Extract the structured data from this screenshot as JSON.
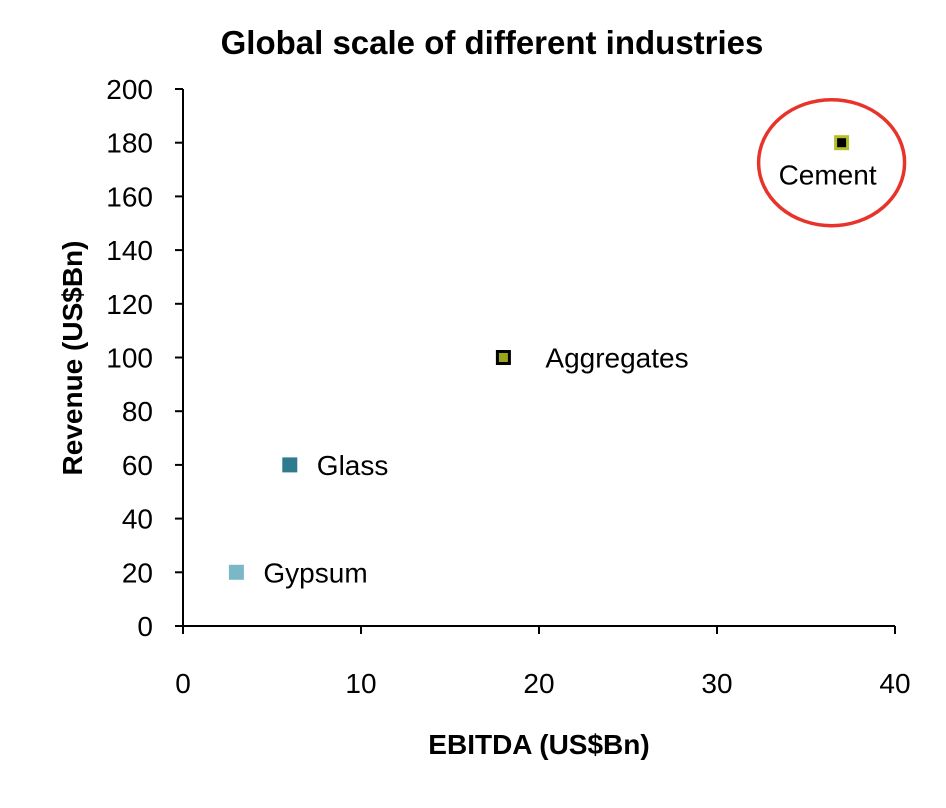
{
  "chart_data": {
    "type": "scatter",
    "title": "Global scale of different industries",
    "xlabel": "EBITDA (US$Bn)",
    "ylabel": "Revenue (US$Bn)",
    "xlim": [
      0,
      40
    ],
    "ylim": [
      0,
      200
    ],
    "xticks": [
      0,
      10,
      20,
      30,
      40
    ],
    "yticks": [
      0,
      20,
      40,
      60,
      80,
      100,
      120,
      140,
      160,
      180,
      200
    ],
    "grid": false,
    "points": [
      {
        "label": "Gypsum",
        "x": 3,
        "y": 20,
        "color": "#7ab8c8",
        "edge": "#7ab8c8"
      },
      {
        "label": "Glass",
        "x": 6,
        "y": 60,
        "color": "#2e7a8e",
        "edge": "#2e7a8e"
      },
      {
        "label": "Aggregates",
        "x": 18,
        "y": 100,
        "color": "#9aa51e",
        "edge": "#000000"
      },
      {
        "label": "Cement",
        "x": 37,
        "y": 180,
        "color": "#000000",
        "edge": "#b6bf2a",
        "highlighted": true
      }
    ],
    "highlight_color": "#e8332a"
  }
}
